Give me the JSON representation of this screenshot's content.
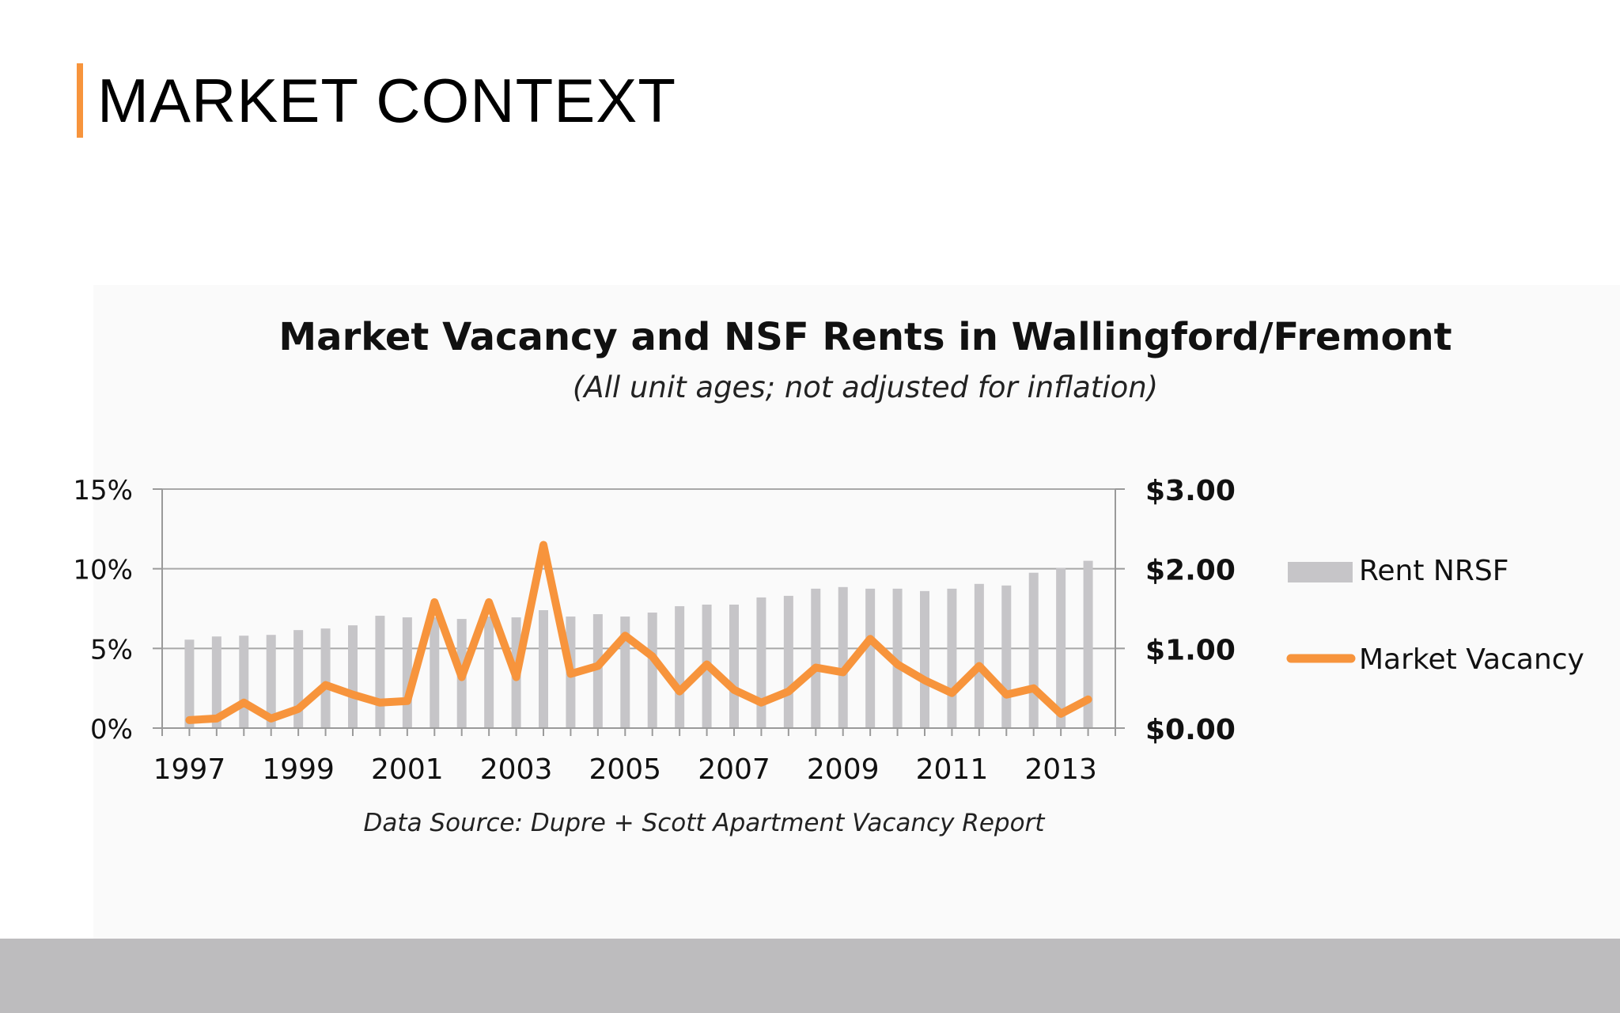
{
  "slide": {
    "title": "MARKET CONTEXT"
  },
  "colors": {
    "accent": "#f7943c",
    "bar": "#c6c5c8",
    "footer": "#bdbcbe"
  },
  "chart_data": {
    "type": "bar",
    "title": "Market Vacancy and NSF Rents in Wallingford/Fremont",
    "subtitle": "(All unit ages; not adjusted for inflation)",
    "source": "Data Source: Dupre + Scott  Apartment Vacancy Report",
    "legend_position": "right",
    "grid": true,
    "x_ticks": [
      "1997",
      "1999",
      "2001",
      "2003",
      "2005",
      "2007",
      "2009",
      "2011",
      "2013"
    ],
    "y_left": {
      "ticks": [
        "0%",
        "5%",
        "10%",
        "15%"
      ],
      "range": [
        0,
        15
      ]
    },
    "y_right": {
      "ticks": [
        "$0.00",
        "$1.00",
        "$2.00",
        "$3.00"
      ],
      "range": [
        0,
        3
      ]
    },
    "x": [
      1997,
      1997.5,
      1998,
      1998.5,
      1999,
      1999.5,
      2000,
      2000.5,
      2001,
      2001.5,
      2002,
      2002.5,
      2003,
      2003.5,
      2004,
      2004.5,
      2005,
      2005.5,
      2006,
      2006.5,
      2007,
      2007.5,
      2008,
      2008.5,
      2009,
      2009.5,
      2010,
      2010.5,
      2011,
      2011.5,
      2012,
      2012.5,
      2013,
      2013.5
    ],
    "series": [
      {
        "name": "Rent NRSF",
        "type": "bar",
        "axis": "right",
        "color": "#c6c5c8",
        "values": [
          1.11,
          1.15,
          1.16,
          1.17,
          1.23,
          1.25,
          1.29,
          1.41,
          1.39,
          1.39,
          1.37,
          1.4,
          1.39,
          1.48,
          1.4,
          1.43,
          1.4,
          1.45,
          1.53,
          1.55,
          1.55,
          1.64,
          1.66,
          1.75,
          1.77,
          1.75,
          1.75,
          1.72,
          1.75,
          1.81,
          1.79,
          1.95,
          2.01,
          2.1
        ]
      },
      {
        "name": "Market Vacancy",
        "type": "line",
        "axis": "left",
        "color": "#f7943c",
        "values": [
          0.5,
          0.6,
          1.6,
          0.6,
          1.2,
          2.7,
          2.1,
          1.6,
          1.7,
          7.9,
          3.2,
          7.9,
          3.2,
          11.5,
          3.4,
          3.9,
          5.8,
          4.5,
          2.3,
          4.0,
          2.4,
          1.6,
          2.3,
          3.8,
          3.5,
          5.6,
          4.0,
          3.0,
          2.2,
          3.9,
          2.1,
          2.5,
          0.9,
          1.8
        ]
      }
    ]
  }
}
